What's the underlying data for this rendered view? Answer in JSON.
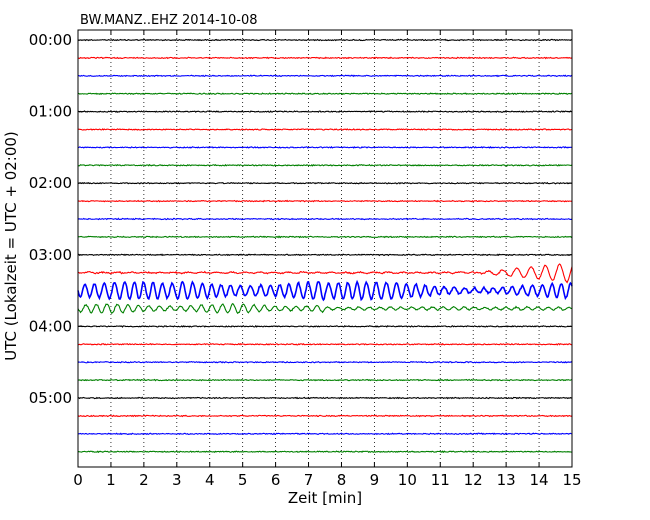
{
  "chart_data": {
    "type": "line",
    "title": "BW.MANZ..EHZ 2014-10-08",
    "xlabel": "Zeit  [min]",
    "ylabel": "UTC (Lokalzeit = UTC + 02:00)",
    "xlim": [
      0,
      15
    ],
    "x_ticks": [
      "0",
      "1",
      "2",
      "3",
      "4",
      "5",
      "6",
      "7",
      "8",
      "9",
      "10",
      "11",
      "12",
      "13",
      "14",
      "15"
    ],
    "y_ticks": [
      "00:00",
      "01:00",
      "02:00",
      "03:00",
      "04:00",
      "05:00"
    ],
    "row_interval_min": 15,
    "rows": 24,
    "grid": "vertical-dotted",
    "trace_colors": [
      "#000000",
      "#ff0000",
      "#0000ff",
      "#008000"
    ],
    "event_rows": [
      {
        "start": "03:15",
        "color": "#ff0000",
        "note": "amplitude increases after 12 min"
      },
      {
        "start": "03:30",
        "color": "#0000ff",
        "note": "large oscillation throughout"
      },
      {
        "start": "03:45",
        "color": "#008000",
        "note": "moderate oscillation 0-7 min"
      }
    ]
  }
}
